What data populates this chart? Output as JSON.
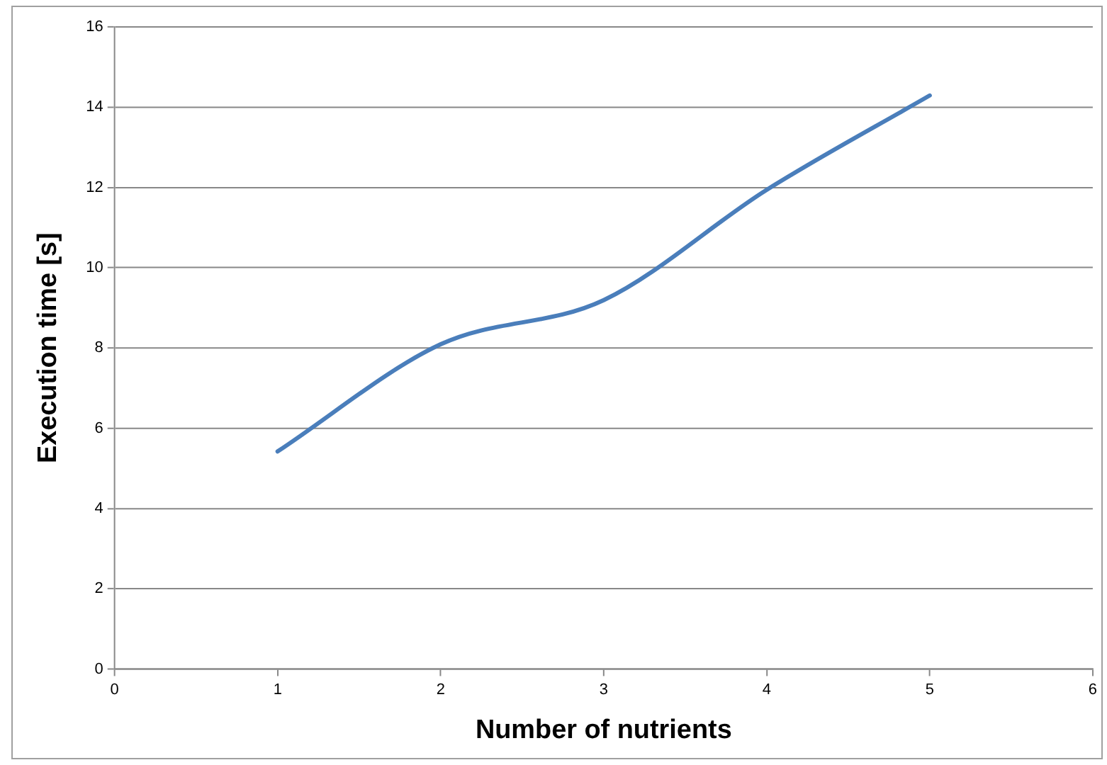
{
  "chart_data": {
    "type": "line",
    "xlabel": "Number of nutrients",
    "ylabel": "Execution time [s]",
    "x": [
      1,
      2,
      3,
      4,
      5
    ],
    "series": [
      {
        "color": "#4a7ebb",
        "values": [
          5.42,
          8.09,
          9.19,
          11.94,
          14.29
        ]
      }
    ],
    "xlim": [
      0,
      6
    ],
    "xticks": [
      0,
      1,
      2,
      3,
      4,
      5,
      6
    ],
    "ylim": [
      0,
      16
    ],
    "yticks": [
      0,
      2,
      4,
      6,
      8,
      10,
      12,
      14,
      16
    ],
    "grid": "y",
    "legend": false,
    "marker": "none",
    "line_style": "solid"
  }
}
